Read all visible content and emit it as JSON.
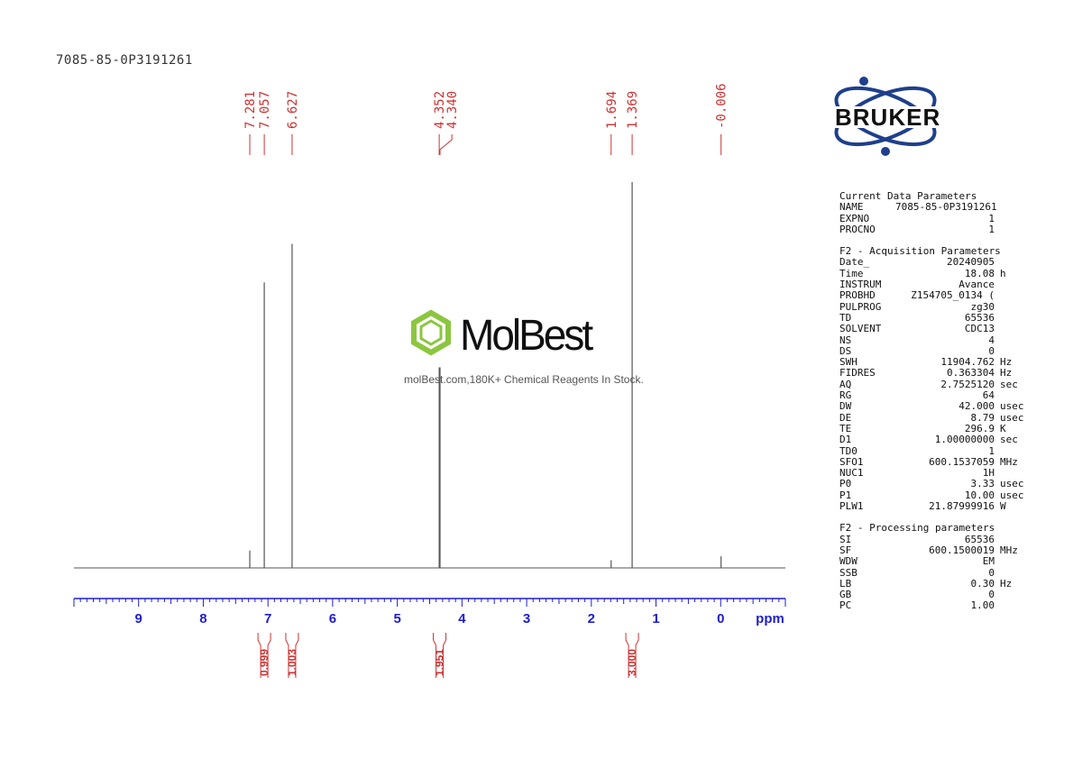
{
  "sample_name": "7085-85-0P3191261",
  "brand": {
    "bruker": "BRUKER",
    "watermark_name": "MolBest",
    "watermark_tagline": "molBest.com,180K+ Chemical Reagents In Stock.",
    "watermark_color": "#8cc63f"
  },
  "chart_data": {
    "type": "line",
    "xlabel": "ppm",
    "xlim": [
      10.0,
      -1.0
    ],
    "x_ticks": [
      9,
      8,
      7,
      6,
      5,
      4,
      3,
      2,
      1,
      0
    ],
    "spectrum_color": "#555555",
    "peak_label_color": "#cc3333",
    "axis_color": "#1e1ecc",
    "peaks": [
      {
        "ppm": 7.281,
        "height": 0.045
      },
      {
        "ppm": 7.057,
        "height": 0.74
      },
      {
        "ppm": 6.627,
        "height": 0.84
      },
      {
        "ppm": 4.352,
        "height": 0.52
      },
      {
        "ppm": 4.34,
        "height": 0.52
      },
      {
        "ppm": 1.694,
        "height": 0.02
      },
      {
        "ppm": 1.369,
        "height": 1.0
      },
      {
        "ppm": -0.006,
        "height": 0.03
      }
    ],
    "peak_labels": [
      {
        "ppm": 7.281,
        "text": "7.281"
      },
      {
        "ppm": 7.057,
        "text": "7.057"
      },
      {
        "ppm": 6.627,
        "text": "6.627"
      },
      {
        "ppm": 4.352,
        "text": "4.352"
      },
      {
        "ppm": 4.34,
        "text": "4.340"
      },
      {
        "ppm": 1.694,
        "text": "1.694"
      },
      {
        "ppm": 1.369,
        "text": "1.369"
      },
      {
        "ppm": -0.006,
        "text": "-0.006"
      }
    ],
    "integrals": [
      {
        "ppm": 7.057,
        "value": "0.999"
      },
      {
        "ppm": 6.627,
        "value": "1.003"
      },
      {
        "ppm": 4.346,
        "value": "1.951"
      },
      {
        "ppm": 1.369,
        "value": "3.000"
      }
    ]
  },
  "parameters": [
    {
      "title": "Current Data Parameters",
      "rows": [
        {
          "k": "NAME",
          "v": "7085-85-0P3191261",
          "u": ""
        },
        {
          "k": "EXPNO",
          "v": "1",
          "u": ""
        },
        {
          "k": "PROCNO",
          "v": "1",
          "u": ""
        }
      ]
    },
    {
      "title": "F2 - Acquisition Parameters",
      "rows": [
        {
          "k": "Date_",
          "v": "20240905",
          "u": ""
        },
        {
          "k": "Time",
          "v": "18.08",
          "u": "h"
        },
        {
          "k": "INSTRUM",
          "v": "Avance",
          "u": ""
        },
        {
          "k": "PROBHD",
          "v": "Z154705_0134 (",
          "u": ""
        },
        {
          "k": "PULPROG",
          "v": "zg30",
          "u": ""
        },
        {
          "k": "TD",
          "v": "65536",
          "u": ""
        },
        {
          "k": "SOLVENT",
          "v": "CDC13",
          "u": ""
        },
        {
          "k": "NS",
          "v": "4",
          "u": ""
        },
        {
          "k": "DS",
          "v": "0",
          "u": ""
        },
        {
          "k": "SWH",
          "v": "11904.762",
          "u": "Hz"
        },
        {
          "k": "FIDRES",
          "v": "0.363304",
          "u": "Hz"
        },
        {
          "k": "AQ",
          "v": "2.7525120",
          "u": "sec"
        },
        {
          "k": "RG",
          "v": "64",
          "u": ""
        },
        {
          "k": "DW",
          "v": "42.000",
          "u": "usec"
        },
        {
          "k": "DE",
          "v": "8.79",
          "u": "usec"
        },
        {
          "k": "TE",
          "v": "296.9",
          "u": "K"
        },
        {
          "k": "D1",
          "v": "1.00000000",
          "u": "sec"
        },
        {
          "k": "TD0",
          "v": "1",
          "u": ""
        },
        {
          "k": "SFO1",
          "v": "600.1537059",
          "u": "MHz"
        },
        {
          "k": "NUC1",
          "v": "1H",
          "u": ""
        },
        {
          "k": "P0",
          "v": "3.33",
          "u": "usec"
        },
        {
          "k": "P1",
          "v": "10.00",
          "u": "usec"
        },
        {
          "k": "PLW1",
          "v": "21.87999916",
          "u": "W"
        }
      ]
    },
    {
      "title": "F2 - Processing parameters",
      "rows": [
        {
          "k": "SI",
          "v": "65536",
          "u": ""
        },
        {
          "k": "SF",
          "v": "600.1500019",
          "u": "MHz"
        },
        {
          "k": "WDW",
          "v": "EM",
          "u": ""
        },
        {
          "k": "SSB",
          "v": "0",
          "u": ""
        },
        {
          "k": "LB",
          "v": "0.30",
          "u": "Hz"
        },
        {
          "k": "GB",
          "v": "0",
          "u": ""
        },
        {
          "k": "PC",
          "v": "1.00",
          "u": ""
        }
      ]
    }
  ]
}
